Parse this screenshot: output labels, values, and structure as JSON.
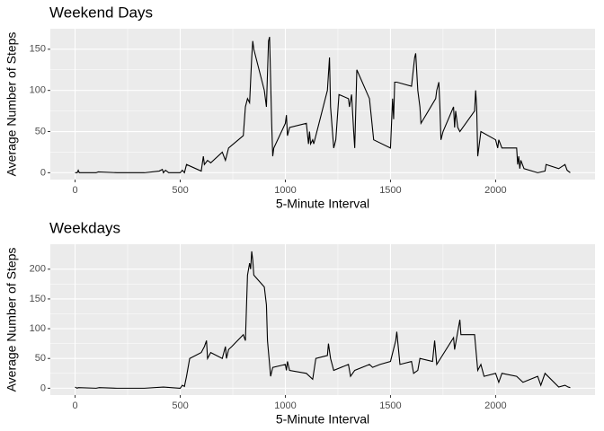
{
  "chart_data": [
    {
      "type": "line",
      "title": "Weekend Days",
      "x_label": "5-Minute Interval",
      "y_label": "Average Number of Steps",
      "x": [
        0,
        10,
        15,
        20,
        100,
        110,
        200,
        330,
        400,
        415,
        420,
        430,
        445,
        500,
        510,
        520,
        530,
        600,
        610,
        615,
        630,
        645,
        700,
        715,
        730,
        800,
        810,
        820,
        830,
        840,
        845,
        850,
        900,
        910,
        920,
        925,
        935,
        940,
        945,
        1000,
        1005,
        1010,
        1020,
        1100,
        1110,
        1115,
        1120,
        1130,
        1135,
        1200,
        1205,
        1210,
        1215,
        1230,
        1240,
        1255,
        1300,
        1305,
        1315,
        1325,
        1330,
        1340,
        1400,
        1420,
        1500,
        1510,
        1515,
        1520,
        1530,
        1600,
        1615,
        1620,
        1630,
        1640,
        1645,
        1715,
        1720,
        1730,
        1735,
        1740,
        1750,
        1800,
        1805,
        1810,
        1820,
        1830,
        1900,
        1905,
        1910,
        1915,
        1930,
        2000,
        2010,
        2015,
        2030,
        2100,
        2105,
        2110,
        2115,
        2120,
        2135,
        2200,
        2235,
        2240,
        2300,
        2330,
        2340,
        2355
      ],
      "series": [
        {
          "color": "#000000",
          "values": [
            0,
            0,
            3,
            0,
            0,
            1,
            0,
            0,
            2,
            4,
            0,
            3,
            0,
            0,
            3,
            0,
            10,
            2,
            20,
            10,
            15,
            12,
            25,
            15,
            30,
            45,
            80,
            90,
            85,
            140,
            160,
            150,
            100,
            80,
            160,
            165,
            60,
            20,
            30,
            60,
            70,
            45,
            55,
            60,
            35,
            50,
            35,
            40,
            35,
            100,
            120,
            140,
            80,
            30,
            40,
            95,
            90,
            80,
            95,
            50,
            30,
            125,
            90,
            40,
            30,
            90,
            65,
            110,
            110,
            105,
            140,
            145,
            100,
            80,
            60,
            90,
            100,
            110,
            80,
            40,
            50,
            80,
            55,
            75,
            55,
            50,
            75,
            100,
            80,
            20,
            50,
            40,
            30,
            40,
            30,
            30,
            10,
            20,
            5,
            15,
            5,
            0,
            2,
            10,
            5,
            10,
            3,
            0
          ]
        }
      ],
      "xlim": [
        -117.75,
        2472.75
      ],
      "ylim": [
        -8.33,
        174.9
      ],
      "xticks": [
        0,
        500,
        1000,
        1500,
        2000
      ],
      "yticks": [
        0,
        50,
        100,
        150
      ],
      "grid": true
    },
    {
      "type": "line",
      "title": "Weekdays",
      "x_label": "5-Minute Interval",
      "y_label": "Average Number of Steps",
      "x": [
        0,
        10,
        15,
        100,
        115,
        200,
        330,
        420,
        500,
        510,
        520,
        530,
        545,
        600,
        615,
        625,
        630,
        645,
        700,
        715,
        720,
        730,
        745,
        800,
        810,
        820,
        830,
        835,
        840,
        845,
        850,
        900,
        910,
        915,
        930,
        940,
        1000,
        1005,
        1010,
        1020,
        1100,
        1130,
        1145,
        1200,
        1205,
        1215,
        1230,
        1300,
        1310,
        1330,
        1400,
        1415,
        1450,
        1500,
        1525,
        1530,
        1545,
        1600,
        1610,
        1630,
        1640,
        1700,
        1710,
        1720,
        1800,
        1805,
        1830,
        1835,
        1900,
        1915,
        1930,
        1945,
        2000,
        2015,
        2030,
        2100,
        2130,
        2200,
        2215,
        2235,
        2300,
        2330,
        2345,
        2355
      ],
      "series": [
        {
          "color": "#000000",
          "values": [
            2,
            0,
            1,
            0,
            1,
            0,
            0,
            2,
            0,
            5,
            3,
            20,
            50,
            60,
            70,
            80,
            50,
            60,
            50,
            70,
            50,
            65,
            70,
            90,
            80,
            190,
            210,
            200,
            230,
            215,
            190,
            170,
            140,
            80,
            20,
            35,
            40,
            30,
            45,
            30,
            25,
            15,
            50,
            55,
            75,
            50,
            30,
            40,
            20,
            30,
            40,
            35,
            40,
            45,
            80,
            95,
            40,
            45,
            25,
            30,
            50,
            45,
            80,
            40,
            85,
            65,
            115,
            90,
            90,
            30,
            40,
            20,
            25,
            10,
            25,
            20,
            10,
            20,
            5,
            25,
            2,
            5,
            2,
            1
          ]
        }
      ],
      "xlim": [
        -117.75,
        2472.75
      ],
      "ylim": [
        -11.5,
        241.9
      ],
      "xticks": [
        0,
        500,
        1000,
        1500,
        2000
      ],
      "yticks": [
        0,
        50,
        100,
        150,
        200
      ],
      "grid": true
    }
  ]
}
